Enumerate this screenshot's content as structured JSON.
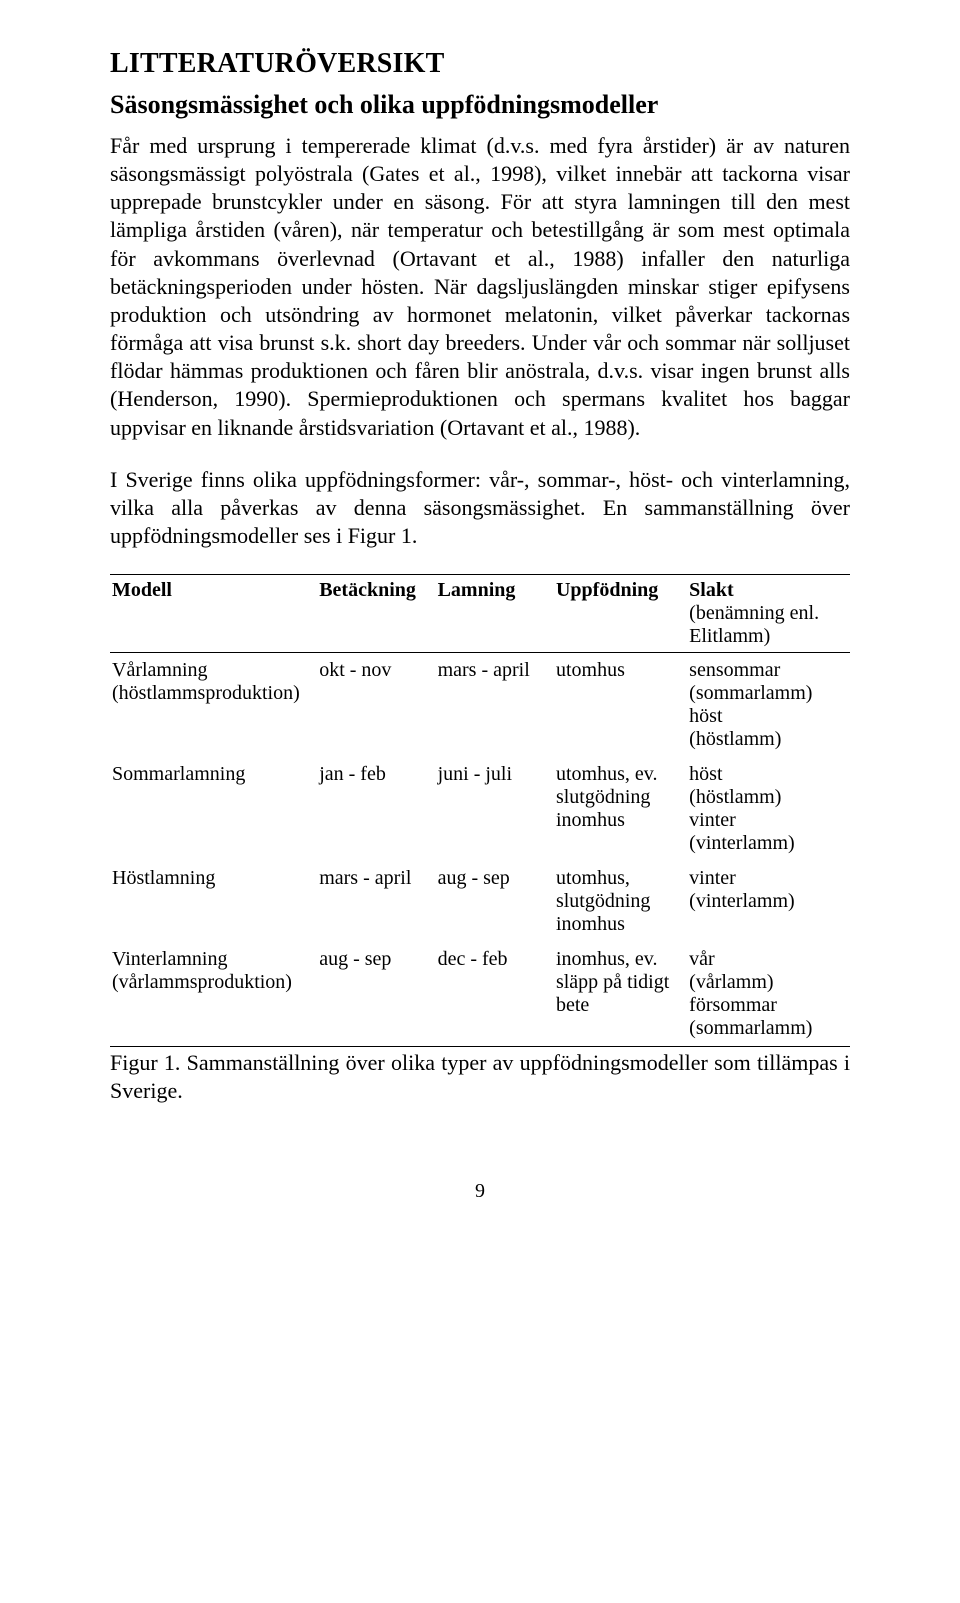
{
  "headings": {
    "h1": "LITTERATURÖVERSIKT",
    "h2": "Säsongsmässighet och olika uppfödningsmodeller"
  },
  "paragraphs": {
    "p1": "Får med ursprung i tempererade klimat (d.v.s. med fyra årstider) är av naturen säsongsmässigt polyöstrala (Gates et al., 1998), vilket innebär att tackorna visar upprepade brunstcykler under en säsong. För att styra lamningen till den mest lämpliga årstiden (våren), när temperatur och betestillgång är som mest optimala för avkommans överlevnad (Ortavant et al., 1988) infaller den naturliga betäckningsperioden under hösten. När dagsljuslängden minskar stiger epifysens produktion och utsöndring av hormonet melatonin, vilket påverkar tackornas förmåga att visa brunst s.k. short day breeders. Under vår och sommar när solljuset flödar hämmas produktionen och fåren blir anöstrala, d.v.s. visar ingen brunst alls (Henderson, 1990). Spermieproduktionen och spermans kvalitet hos baggar uppvisar en liknande årstidsvariation (Ortavant et al., 1988).",
    "p2": "I Sverige finns olika uppfödningsformer: vår-, sommar-, höst- och vinterlamning, vilka alla påverkas av denna säsongsmässighet. En sammanställning över uppfödningsmodeller ses i Figur 1."
  },
  "table": {
    "headers": {
      "model": "Modell",
      "bet": "Betäckning",
      "lam": "Lamning",
      "upp": "Uppfödning",
      "slk_line1": "Slakt",
      "slk_line2": "(benämning enl. Elitlamm)"
    },
    "rows": [
      {
        "model_line1": "Vårlamning",
        "model_line2": "(höstlammsproduktion)",
        "bet": "okt - nov",
        "lam": "mars - april",
        "upp": "utomhus",
        "slk_line1": "sensommar",
        "slk_line2": "(sommarlamm)",
        "slk_line3": "höst",
        "slk_line4": "(höstlamm)"
      },
      {
        "model_line1": "Sommarlamning",
        "model_line2": "",
        "bet": "jan - feb",
        "lam": "juni - juli",
        "upp": "utomhus, ev. slutgödning inomhus",
        "slk_line1": "höst",
        "slk_line2": "(höstlamm)",
        "slk_line3": "vinter",
        "slk_line4": "(vinterlamm)"
      },
      {
        "model_line1": "Höstlamning",
        "model_line2": "",
        "bet": "mars - april",
        "lam": "aug - sep",
        "upp": "utomhus, slutgödning inomhus",
        "slk_line1": "vinter",
        "slk_line2": "(vinterlamm)",
        "slk_line3": "",
        "slk_line4": ""
      },
      {
        "model_line1": "Vinterlamning",
        "model_line2": "(vårlammsproduktion)",
        "bet": "aug - sep",
        "lam": "dec - feb",
        "upp": "inomhus, ev. släpp på tidigt bete",
        "slk_line1": "vår",
        "slk_line2": "(vårlamm)",
        "slk_line3": "försommar",
        "slk_line4": "(sommarlamm)"
      }
    ]
  },
  "caption": "Figur 1. Sammanställning över olika typer av uppfödningsmodeller som tillämpas i Sverige.",
  "page_number": "9"
}
